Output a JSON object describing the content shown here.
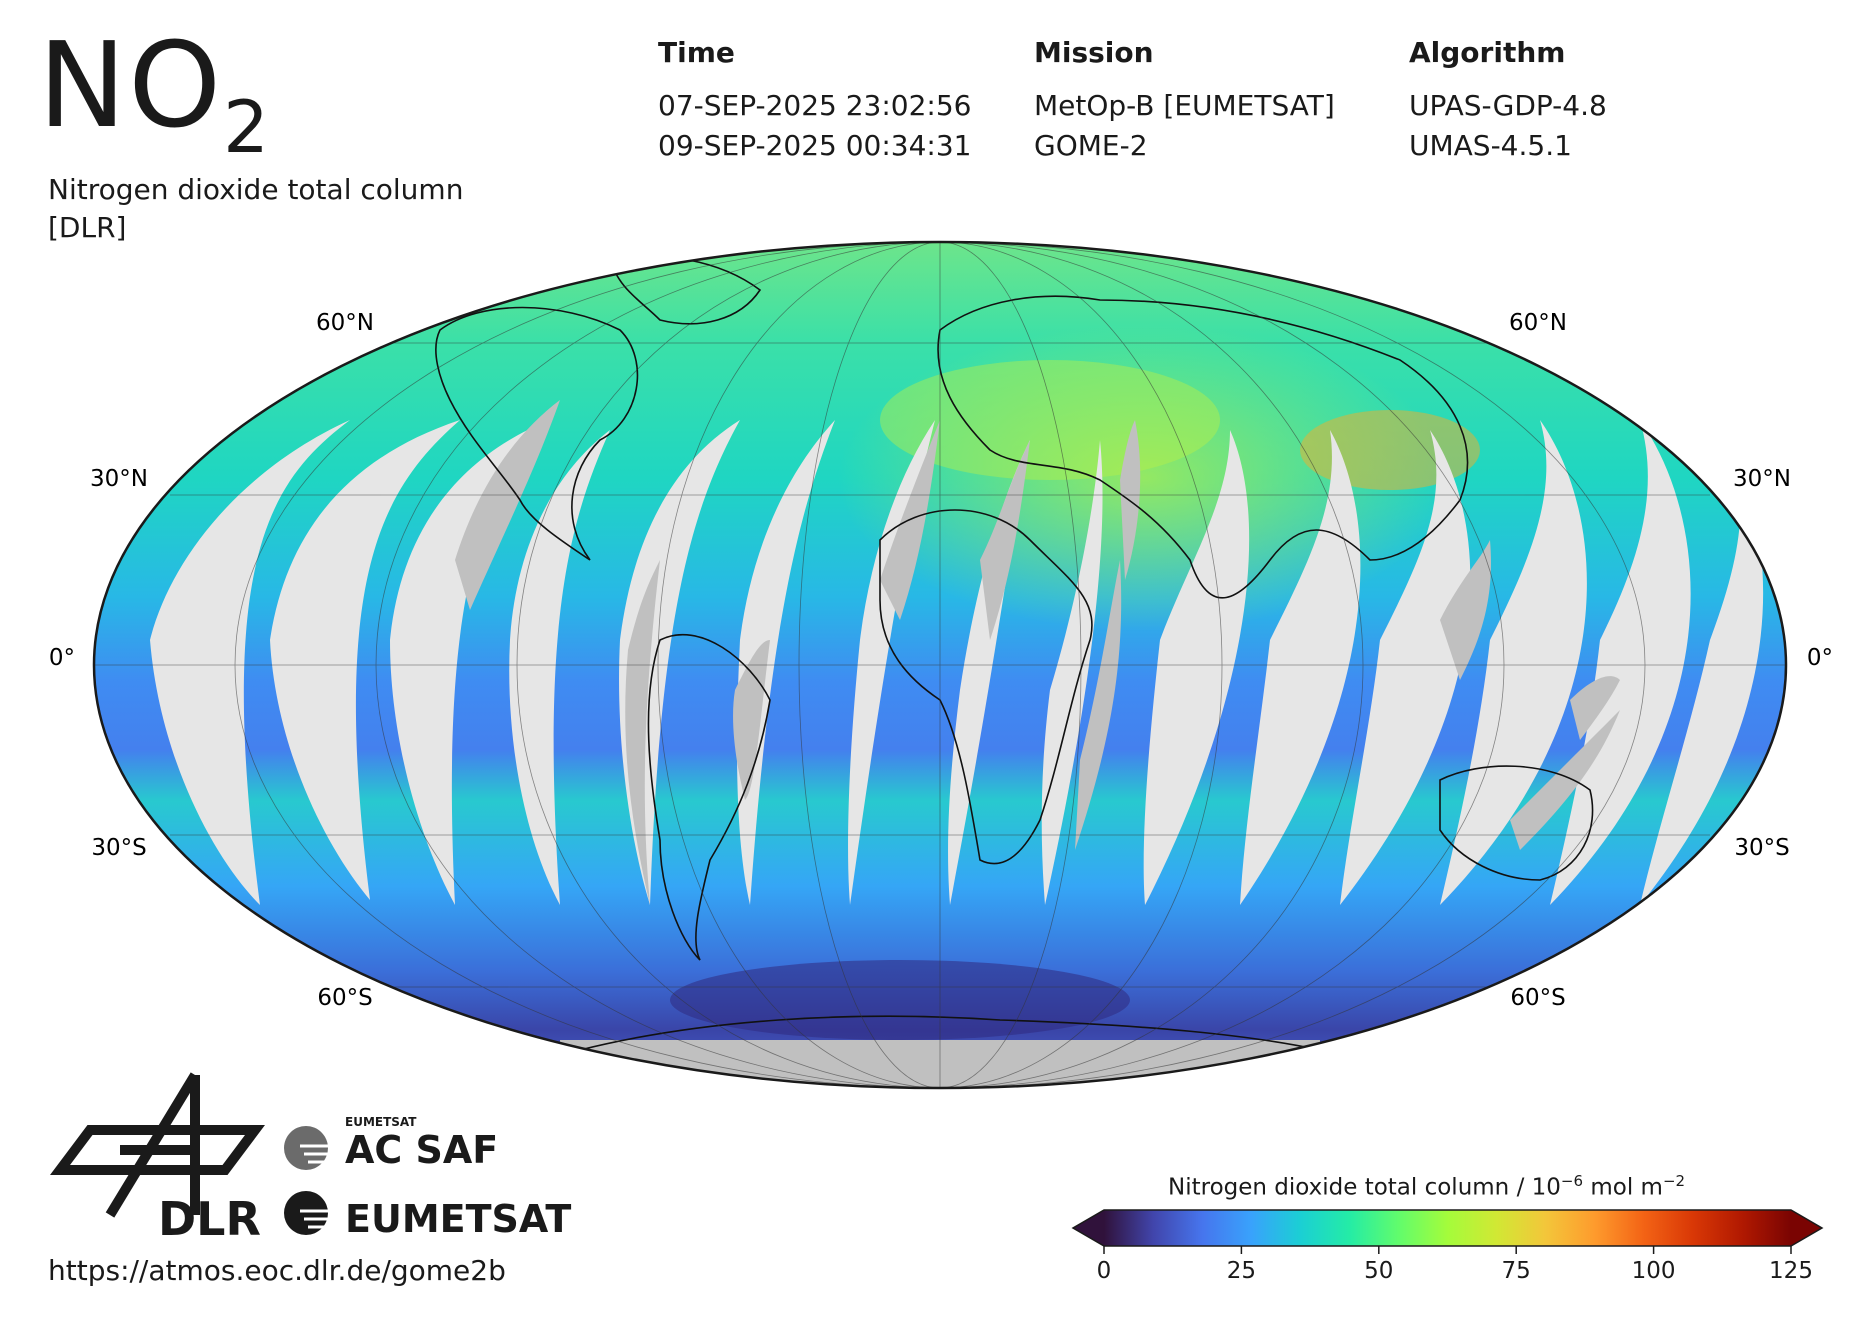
{
  "header": {
    "title_main": "NO",
    "title_sub": "2",
    "subtitle_line1": "Nitrogen dioxide total column",
    "subtitle_line2": "[DLR]"
  },
  "info": {
    "time": {
      "label": "Time",
      "line1": "07-SEP-2025 23:02:56",
      "line2": "09-SEP-2025 00:34:31"
    },
    "mission": {
      "label": "Mission",
      "line1": "MetOp-B [EUMETSAT]",
      "line2": "GOME-2"
    },
    "algorithm": {
      "label": "Algorithm",
      "line1": "UPAS-GDP-4.8",
      "line2": "UMAS-4.5.1"
    }
  },
  "map": {
    "projection": "mollweide",
    "lat_labels": [
      "60°N",
      "30°N",
      "0°",
      "30°S",
      "60°S"
    ],
    "colors": {
      "no_data": "#c0c0c0",
      "orbit_gap": "#e6e6e6",
      "outline": "#1a1a1a"
    }
  },
  "colorbar": {
    "title": "Nitrogen dioxide total column / 10",
    "title_exp": "−6",
    "title_unit": " mol m",
    "title_unit_exp": "−2",
    "ticks": [
      "0",
      "25",
      "50",
      "75",
      "100",
      "125"
    ],
    "range": [
      0,
      125
    ],
    "colors": [
      "#30123b",
      "#4145ab",
      "#4675ed",
      "#39a2fc",
      "#1bcfd4",
      "#24eca6",
      "#61fc6c",
      "#a4fc3b",
      "#d1e834",
      "#f3c63a",
      "#fe9b2d",
      "#f36315",
      "#d93806",
      "#b11901",
      "#7a0402"
    ]
  },
  "logos": {
    "dlr": "DLR",
    "eumetsat_small": "EUMETSAT",
    "acsaf": "AC SAF",
    "eumetsat": "EUMETSAT"
  },
  "footer": {
    "url": "https://atmos.eoc.dlr.de/gome2b"
  }
}
